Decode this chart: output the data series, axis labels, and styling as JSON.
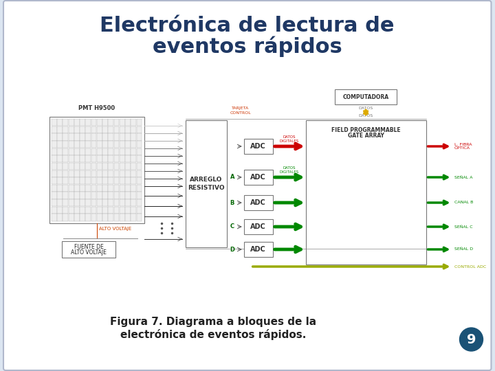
{
  "title_line1": "Electrónica de lectura de",
  "title_line2": "eventos rápidos",
  "title_color": "#1f3864",
  "title_fontsize": 22,
  "caption": "Figura 7. Diagrama a bloques de la\nelectrónica de eventos rápidos.",
  "caption_fontsize": 11,
  "page_number": "9",
  "bg_color": "#dce6f1",
  "slide_bg": "#ffffff",
  "border_color": "#b0b8cc",
  "pmt_label": "PMT H9500",
  "arreglo_line1": "ARREGLO",
  "arreglo_line2": "RESISTIVO",
  "fpga_line1": "FIELD PROGRAMMABLE",
  "fpga_line2": "GATE ARRAY",
  "computadora": "COMPUTADORA",
  "fuente_line1": "FUENTE DE",
  "fuente_line2": "ALTO VOLTAJE",
  "alto_voltaje": "ALTO VOLTAJE",
  "datos_top": "DATOS",
  "datos_bottom": "DATOS",
  "tarjeta_line1": "TARJETA",
  "tarjeta_line2": "CONTROL",
  "datos_digitales": "DATOS\nDIGITALES",
  "datos_digitales2": "DATOS\nDIGITALES",
  "fibra_optica": "L. FIBRA\nÓPTICA",
  "señal_a": "SEÑAL A",
  "canal_b": "CANAL B",
  "señal_c": "SEÑAL C",
  "señal_d": "SEÑAL D",
  "control_adc": "CONTROL ADC",
  "row_letters": [
    "A",
    "B",
    "C",
    "D"
  ],
  "adc_label": "ADC"
}
